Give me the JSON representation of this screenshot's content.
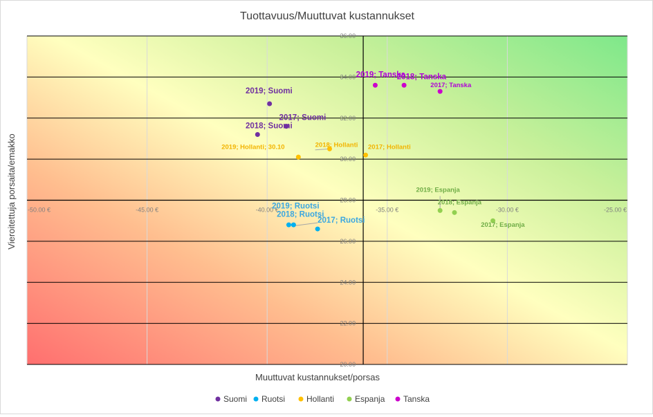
{
  "chart_data": {
    "type": "scatter",
    "title": "Tuottavuus/Muuttuvat kustannukset",
    "xlabel": "Muuttuvat kustannukset/porsas",
    "ylabel": "Vieroitettuja porsaita/emakko",
    "xlim": [
      -50,
      -25
    ],
    "ylim": [
      20,
      36
    ],
    "x_ticks": [
      "-50.00 €",
      "-45.00 €",
      "-40.00 €",
      "-35.00 €",
      "-30.00 €",
      "-25.00 €"
    ],
    "y_ticks": [
      "20.00",
      "22.00",
      "24.00",
      "26.00",
      "28.00",
      "30.00",
      "32.00",
      "34.00",
      "36.00"
    ],
    "axis_crossing": {
      "x": -36,
      "y": 28
    },
    "grid": true,
    "legend_position": "bottom",
    "background": "diagonal gradient from red (bottom-left) through yellow to green (top-right)",
    "series": [
      {
        "name": "Suomi",
        "color": "#7030a0",
        "points": [
          {
            "x": -40.4,
            "y": 31.2,
            "label": "2018; Suomi"
          },
          {
            "x": -39.9,
            "y": 32.7,
            "label": "2019; Suomi"
          },
          {
            "x": -39.2,
            "y": 31.6,
            "label": "2017; Suomi"
          }
        ]
      },
      {
        "name": "Ruotsi",
        "color": "#00b0f0",
        "points": [
          {
            "x": -39.1,
            "y": 26.8,
            "label": "2019; Ruotsi"
          },
          {
            "x": -38.9,
            "y": 26.8,
            "label": "2018; Ruotsi"
          },
          {
            "x": -37.9,
            "y": 26.6,
            "label": "2017; Ruotsi"
          }
        ]
      },
      {
        "name": "Hollanti",
        "color": "#ffc000",
        "points": [
          {
            "x": -38.7,
            "y": 30.1,
            "label": "2019; Hollanti; 30.10"
          },
          {
            "x": -37.4,
            "y": 30.5,
            "label": "2018; Hollanti"
          },
          {
            "x": -35.9,
            "y": 30.2,
            "label": "2017; Hollanti"
          }
        ]
      },
      {
        "name": "Espanja",
        "color": "#92d050",
        "points": [
          {
            "x": -32.8,
            "y": 27.5,
            "label": "2019; Espanja"
          },
          {
            "x": -32.2,
            "y": 27.4,
            "label": "2018; Espanja"
          },
          {
            "x": -30.6,
            "y": 27.0,
            "label": "2017; Espanja"
          }
        ]
      },
      {
        "name": "Tanska",
        "color": "#cc00cc",
        "points": [
          {
            "x": -35.5,
            "y": 33.6,
            "label": "2019; Tanska"
          },
          {
            "x": -34.3,
            "y": 33.6,
            "label": "2018; Tanska"
          },
          {
            "x": -32.8,
            "y": 33.3,
            "label": "2017; Tanska"
          }
        ]
      }
    ]
  }
}
